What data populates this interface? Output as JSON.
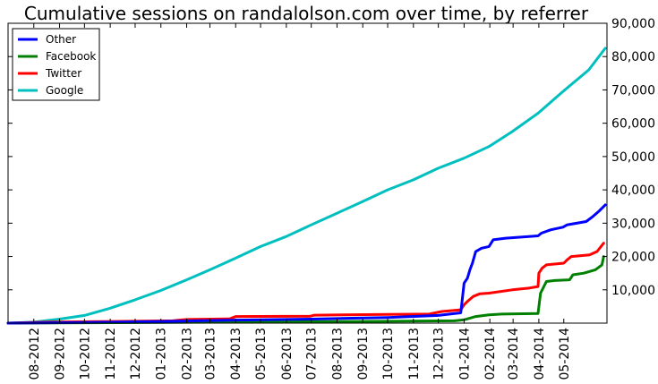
{
  "chart_data": {
    "type": "line",
    "title": "Cumulative sessions on randalolson.com over time, by referrer",
    "xlabel": "",
    "ylabel": "",
    "x_axis": {
      "type": "date",
      "range": [
        "2012-07-01",
        "2014-06-22"
      ],
      "tick_labels": [
        "08-2012",
        "09-2012",
        "10-2012",
        "11-2012",
        "12-2012",
        "01-2013",
        "02-2013",
        "03-2013",
        "04-2013",
        "05-2013",
        "06-2013",
        "07-2013",
        "08-2013",
        "09-2013",
        "10-2013",
        "11-2013",
        "12-2013",
        "01-2014",
        "02-2014",
        "03-2014",
        "04-2014",
        "05-2014"
      ],
      "tick_dates": [
        "2012-08-01",
        "2012-09-01",
        "2012-10-01",
        "2012-11-01",
        "2012-12-01",
        "2013-01-01",
        "2013-02-01",
        "2013-03-01",
        "2013-04-01",
        "2013-05-01",
        "2013-06-01",
        "2013-07-01",
        "2013-08-01",
        "2013-09-01",
        "2013-10-01",
        "2013-11-01",
        "2013-12-01",
        "2014-01-01",
        "2014-02-01",
        "2014-03-01",
        "2014-04-01",
        "2014-05-01"
      ]
    },
    "y_axis": {
      "position": "right",
      "range": [
        0,
        90000
      ],
      "ticks": [
        10000,
        20000,
        30000,
        40000,
        50000,
        60000,
        70000,
        80000,
        90000
      ],
      "tick_labels": [
        "10,000",
        "20,000",
        "30,000",
        "40,000",
        "50,000",
        "60,000",
        "70,000",
        "80,000",
        "90,000"
      ]
    },
    "grid": false,
    "legend_placement": "top-left",
    "series": [
      {
        "name": "Other",
        "color": "#0000ff",
        "points": [
          [
            "2012-07-01",
            0
          ],
          [
            "2012-10-01",
            200
          ],
          [
            "2013-01-01",
            500
          ],
          [
            "2013-04-01",
            900
          ],
          [
            "2013-07-01",
            1200
          ],
          [
            "2013-10-01",
            1700
          ],
          [
            "2013-12-01",
            2300
          ],
          [
            "2013-12-28",
            3100
          ],
          [
            "2014-01-01",
            12000
          ],
          [
            "2014-01-05",
            13500
          ],
          [
            "2014-01-08",
            16000
          ],
          [
            "2014-01-11",
            18000
          ],
          [
            "2014-01-15",
            21500
          ],
          [
            "2014-01-22",
            22500
          ],
          [
            "2014-01-31",
            23000
          ],
          [
            "2014-02-05",
            25000
          ],
          [
            "2014-02-20",
            25500
          ],
          [
            "2014-03-31",
            26200
          ],
          [
            "2014-04-04",
            27000
          ],
          [
            "2014-04-15",
            28000
          ],
          [
            "2014-04-30",
            28800
          ],
          [
            "2014-05-05",
            29500
          ],
          [
            "2014-05-28",
            30500
          ],
          [
            "2014-06-05",
            32000
          ],
          [
            "2014-06-12",
            33500
          ],
          [
            "2014-06-20",
            35500
          ]
        ]
      },
      {
        "name": "Facebook",
        "color": "#008000",
        "points": [
          [
            "2012-07-01",
            0
          ],
          [
            "2013-04-01",
            300
          ],
          [
            "2013-09-01",
            500
          ],
          [
            "2013-12-20",
            700
          ],
          [
            "2014-01-01",
            1000
          ],
          [
            "2014-01-08",
            1500
          ],
          [
            "2014-01-15",
            2000
          ],
          [
            "2014-01-31",
            2500
          ],
          [
            "2014-02-15",
            2700
          ],
          [
            "2014-03-31",
            2900
          ],
          [
            "2014-04-03",
            9000
          ],
          [
            "2014-04-06",
            10500
          ],
          [
            "2014-04-10",
            12500
          ],
          [
            "2014-04-20",
            12800
          ],
          [
            "2014-05-08",
            13000
          ],
          [
            "2014-05-12",
            14500
          ],
          [
            "2014-05-25",
            15000
          ],
          [
            "2014-06-08",
            16000
          ],
          [
            "2014-06-16",
            17500
          ],
          [
            "2014-06-18",
            20000
          ]
        ]
      },
      {
        "name": "Twitter",
        "color": "#ff0000",
        "points": [
          [
            "2012-07-01",
            0
          ],
          [
            "2012-08-15",
            300
          ],
          [
            "2013-01-15",
            700
          ],
          [
            "2013-02-01",
            1100
          ],
          [
            "2013-03-25",
            1300
          ],
          [
            "2013-04-01",
            2000
          ],
          [
            "2013-06-30",
            2100
          ],
          [
            "2013-07-05",
            2400
          ],
          [
            "2013-10-01",
            2600
          ],
          [
            "2013-11-20",
            2700
          ],
          [
            "2013-12-05",
            3500
          ],
          [
            "2013-12-28",
            4000
          ],
          [
            "2014-01-01",
            5500
          ],
          [
            "2014-01-05",
            6500
          ],
          [
            "2014-01-12",
            8000
          ],
          [
            "2014-01-20",
            8800
          ],
          [
            "2014-01-31",
            9000
          ],
          [
            "2014-02-28",
            10000
          ],
          [
            "2014-03-20",
            10500
          ],
          [
            "2014-03-31",
            11000
          ],
          [
            "2014-04-01",
            15000
          ],
          [
            "2014-04-05",
            16500
          ],
          [
            "2014-04-10",
            17500
          ],
          [
            "2014-05-01",
            18000
          ],
          [
            "2014-05-05",
            19000
          ],
          [
            "2014-05-10",
            20000
          ],
          [
            "2014-06-01",
            20500
          ],
          [
            "2014-06-10",
            21500
          ],
          [
            "2014-06-18",
            24000
          ]
        ]
      },
      {
        "name": "Google",
        "color": "#00bfbf",
        "points": [
          [
            "2012-07-01",
            0
          ],
          [
            "2012-08-01",
            300
          ],
          [
            "2012-09-01",
            1200
          ],
          [
            "2012-10-01",
            2300
          ],
          [
            "2012-11-01",
            4500
          ],
          [
            "2012-12-01",
            7000
          ],
          [
            "2013-01-01",
            9800
          ],
          [
            "2013-02-01",
            13000
          ],
          [
            "2013-03-01",
            16000
          ],
          [
            "2013-04-01",
            19500
          ],
          [
            "2013-05-01",
            23000
          ],
          [
            "2013-06-01",
            26000
          ],
          [
            "2013-07-01",
            29500
          ],
          [
            "2013-08-01",
            33000
          ],
          [
            "2013-09-01",
            36500
          ],
          [
            "2013-10-01",
            40000
          ],
          [
            "2013-11-01",
            43000
          ],
          [
            "2013-12-01",
            46500
          ],
          [
            "2014-01-01",
            49500
          ],
          [
            "2014-01-31",
            53000
          ],
          [
            "2014-02-28",
            57500
          ],
          [
            "2014-03-31",
            63000
          ],
          [
            "2014-04-30",
            69500
          ],
          [
            "2014-05-31",
            76000
          ],
          [
            "2014-06-20",
            82500
          ]
        ]
      }
    ]
  }
}
